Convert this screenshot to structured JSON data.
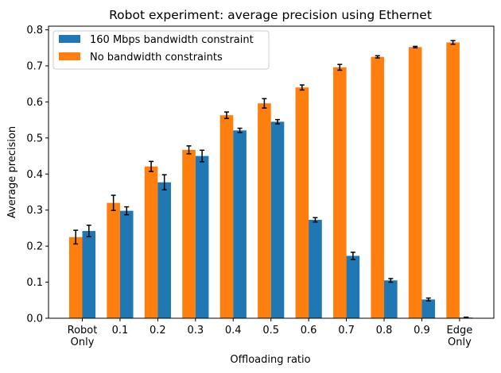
{
  "chart_data": {
    "type": "bar",
    "title": "Robot experiment: average precision using Ethernet",
    "xlabel": "Offloading ratio",
    "ylabel": "Average precision",
    "ylim": [
      0,
      0.81
    ],
    "yticks": [
      "0.0",
      "0.1",
      "0.2",
      "0.3",
      "0.4",
      "0.5",
      "0.6",
      "0.7",
      "0.8"
    ],
    "categories": [
      [
        "Robot",
        "Only"
      ],
      [
        "0.1"
      ],
      [
        "0.2"
      ],
      [
        "0.3"
      ],
      [
        "0.4"
      ],
      [
        "0.5"
      ],
      [
        "0.6"
      ],
      [
        "0.7"
      ],
      [
        "0.8"
      ],
      [
        "0.9"
      ],
      [
        "Edge",
        "Only"
      ]
    ],
    "legend_position": "top-left",
    "grid": false,
    "series": [
      {
        "name": "No bandwidth constraints",
        "color": "#ff7f0e",
        "values": [
          0.225,
          0.32,
          0.421,
          0.467,
          0.563,
          0.596,
          0.64,
          0.696,
          0.725,
          0.752,
          0.765
        ],
        "errors": [
          0.019,
          0.021,
          0.014,
          0.011,
          0.009,
          0.013,
          0.007,
          0.008,
          0.003,
          0.002,
          0.005
        ]
      },
      {
        "name": "160 Mbps bandwidth constraint",
        "color": "#1f77b4",
        "values": [
          0.242,
          0.298,
          0.377,
          0.45,
          0.521,
          0.545,
          0.273,
          0.173,
          0.105,
          0.052,
          0.002
        ],
        "errors": [
          0.016,
          0.011,
          0.021,
          0.016,
          0.006,
          0.006,
          0.006,
          0.01,
          0.005,
          0.004,
          0.001
        ]
      }
    ],
    "legend_order": [
      1,
      0
    ]
  }
}
